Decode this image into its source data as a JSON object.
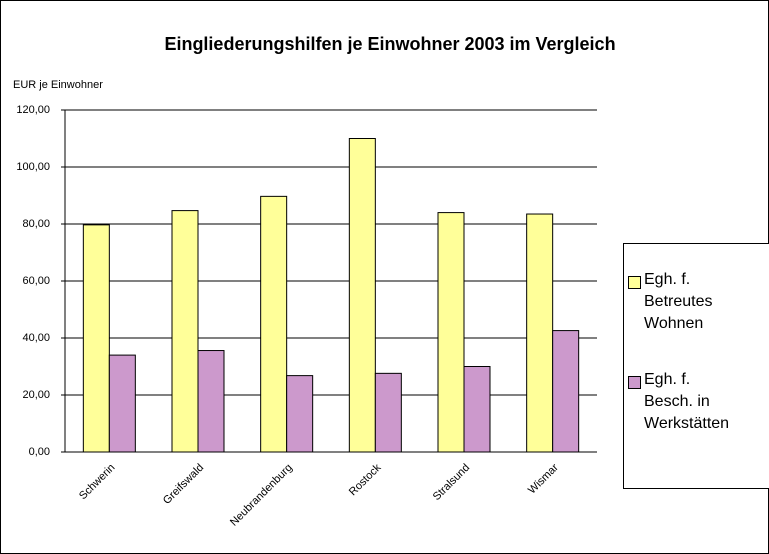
{
  "chart_data": {
    "type": "bar",
    "title": "Eingliederungshilfen je Einwohner 2003 im Vergleich",
    "y_label": "EUR je Einwohner",
    "categories": [
      "Schwerin",
      "Greifswald",
      "Neubrandenburg",
      "Rostock",
      "Stralsund",
      "Wismar"
    ],
    "series": [
      {
        "name": "Egh. f. Betreutes Wohnen",
        "color": "#ffff99",
        "values": [
          79.7,
          84.7,
          89.7,
          110,
          84,
          83.5
        ]
      },
      {
        "name": "Egh. f. Besch. in Werkstätten",
        "color": "#cc99cc",
        "values": [
          34,
          35.6,
          26.8,
          27.6,
          30,
          42.6
        ]
      }
    ],
    "ylim": [
      0,
      120
    ],
    "yticks": [
      {
        "value": 0,
        "label": "0,00"
      },
      {
        "value": 20,
        "label": "20,00"
      },
      {
        "value": 40,
        "label": "40,00"
      },
      {
        "value": 60,
        "label": "60,00"
      },
      {
        "value": 80,
        "label": "80,00"
      },
      {
        "value": 100,
        "label": "100,00"
      },
      {
        "value": 120,
        "label": "120,00"
      }
    ],
    "grid": true,
    "legend": "right"
  }
}
